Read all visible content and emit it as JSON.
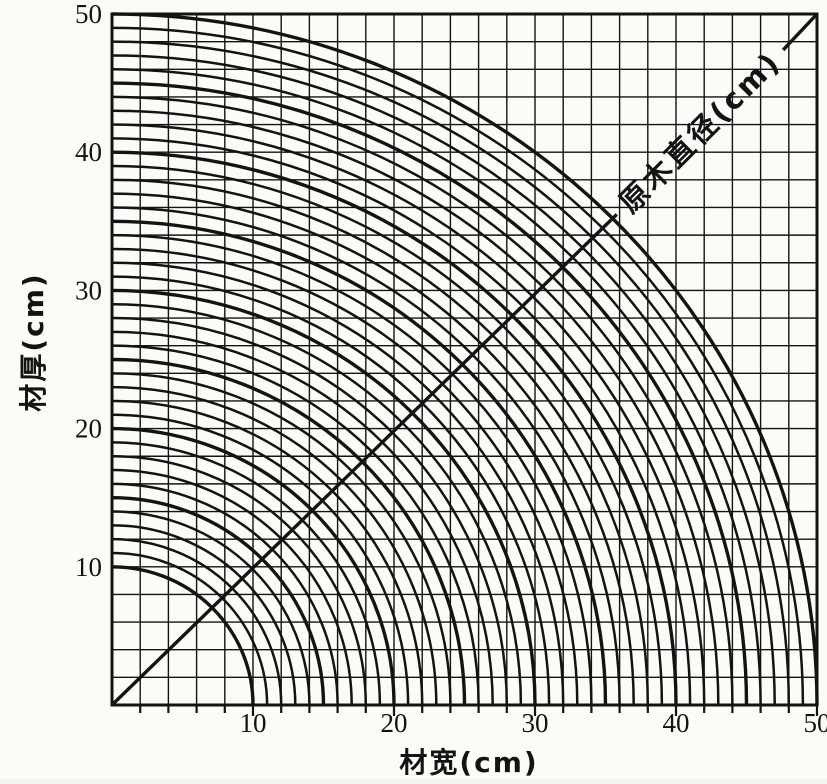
{
  "page": {
    "background": "#fcfbf8",
    "ink": "#131313"
  },
  "chart_data": {
    "type": "line",
    "subtype": "quarter-circle-nomogram",
    "title": "",
    "xlabel": "材宽(cm)",
    "ylabel": "材厚(cm)",
    "diagonal_axis_label": "原木直径(cm)",
    "xlim": [
      0,
      50
    ],
    "ylim": [
      0,
      50
    ],
    "x_tick_labels": [
      10,
      20,
      30,
      40,
      50
    ],
    "y_tick_labels": [
      10,
      20,
      30,
      40,
      50
    ],
    "minor_tick_step": 2,
    "grid": true,
    "grid_step": 2,
    "legend_position": "none",
    "arc_radii": [
      10,
      11,
      12,
      13,
      14,
      15,
      16,
      17,
      18,
      19,
      20,
      21,
      22,
      23,
      24,
      25,
      26,
      27,
      28,
      29,
      30,
      31,
      32,
      33,
      34,
      35,
      36,
      37,
      38,
      39,
      40,
      41,
      42,
      43,
      44,
      45,
      46,
      47,
      48,
      49,
      50
    ],
    "emphasized_radius_multiple": 5,
    "diagonal_line": {
      "from_xy": [
        0,
        0
      ],
      "to_xy": [
        50,
        50
      ]
    }
  }
}
